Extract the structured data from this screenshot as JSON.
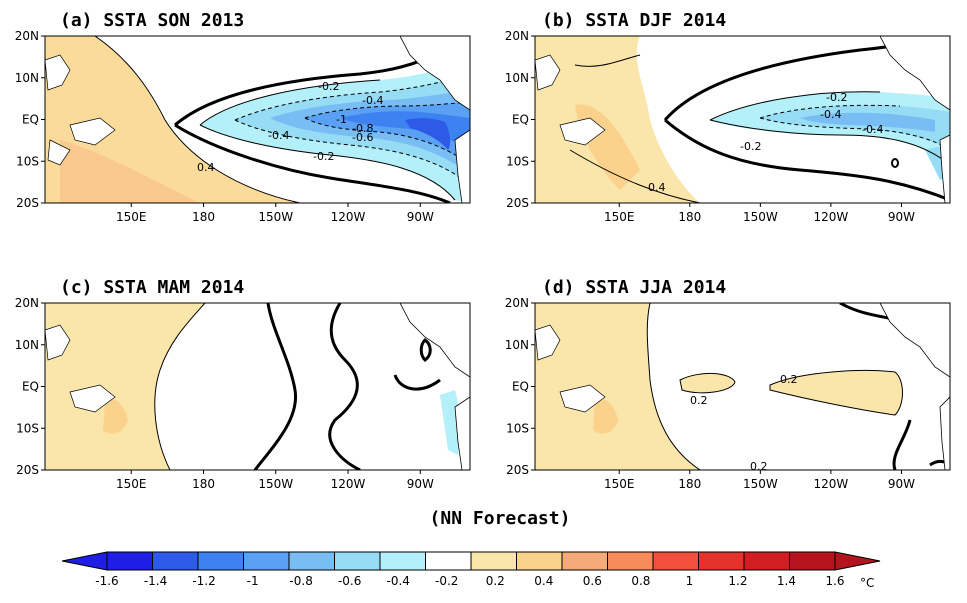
{
  "subtitle": "(NN Forecast)",
  "units": "°C",
  "lat_labels": [
    "20N",
    "10N",
    "EQ",
    "10S",
    "20S"
  ],
  "lon_labels": [
    "150E",
    "180",
    "150W",
    "120W",
    "90W"
  ],
  "panels": [
    {
      "title": "(a) SSTA  SON 2013",
      "contour_labels": [
        "-0.2",
        "-0.4",
        "-1",
        "-0.8",
        "-0.6",
        "-0.4",
        "-0.2",
        "0.4"
      ]
    },
    {
      "title": "(b) SSTA  DJF 2014",
      "contour_labels": [
        "-0.2",
        "-0.4",
        "-0.4",
        "-0.2",
        "0.4"
      ]
    },
    {
      "title": "(c) SSTA  MAM 2014",
      "contour_labels": []
    },
    {
      "title": "(d) SSTA  JJA 2014",
      "contour_labels": [
        "0.2",
        "0.2",
        "0.2"
      ]
    }
  ],
  "colorbar": {
    "labels": [
      "-1.6",
      "-1.4",
      "-1.2",
      "-1",
      "-0.8",
      "-0.6",
      "-0.4",
      "-0.2",
      "0.2",
      "0.4",
      "0.6",
      "0.8",
      "1",
      "1.2",
      "1.4",
      "1.6"
    ],
    "colors": [
      "#1e1ee6",
      "#2d5ae6",
      "#3c82f0",
      "#5aa0f5",
      "#78bef5",
      "#96dcf5",
      "#b4f0fa",
      "#ffffff",
      "#fae6aa",
      "#fad28c",
      "#f5aa78",
      "#f58c5a",
      "#f0503c",
      "#e6322d",
      "#d21e23",
      "#b4141e"
    ]
  }
}
